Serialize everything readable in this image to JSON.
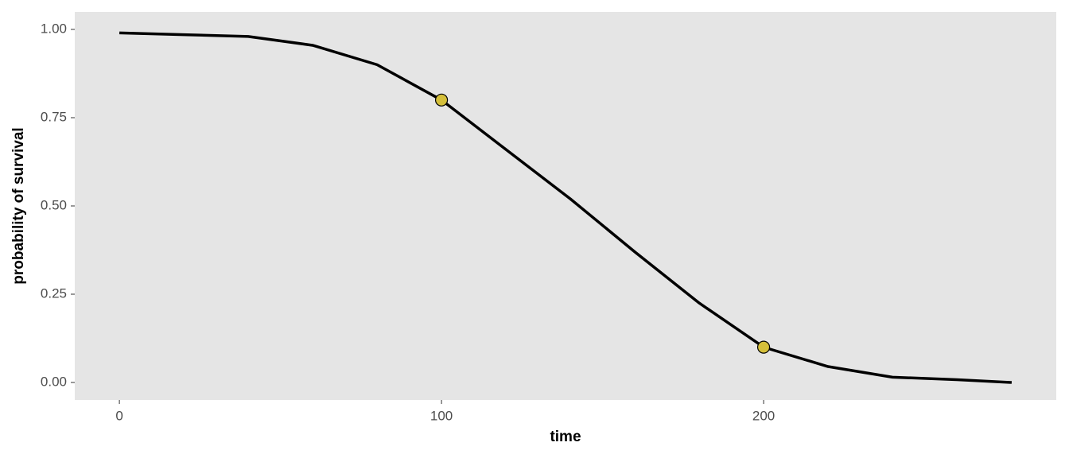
{
  "chart_data": {
    "type": "line",
    "xlabel": "time",
    "ylabel": "probability of survival",
    "x": [
      0,
      20,
      40,
      60,
      80,
      100,
      120,
      140,
      160,
      180,
      200,
      220,
      240,
      260,
      277
    ],
    "values": [
      0.99,
      0.985,
      0.98,
      0.955,
      0.9,
      0.8,
      0.66,
      0.52,
      0.37,
      0.225,
      0.1,
      0.045,
      0.015,
      0.008,
      0.0
    ],
    "color": "#000000",
    "points": {
      "x": [
        100,
        200
      ],
      "values": [
        0.8,
        0.1
      ],
      "color": "#d4bf3a"
    },
    "xlim": [
      -13.85,
      290.85
    ],
    "ylim": [
      -0.0495,
      1.0495
    ],
    "xticks": [
      0,
      100,
      200
    ],
    "yticks": [
      {
        "value": 0,
        "label": "0.00"
      },
      {
        "value": 0.25,
        "label": "0.25"
      },
      {
        "value": 0.5,
        "label": "0.50"
      },
      {
        "value": 0.75,
        "label": "0.75"
      },
      {
        "value": 1,
        "label": "1.00"
      }
    ],
    "grid": false,
    "panel_color": "#e5e5e5"
  }
}
